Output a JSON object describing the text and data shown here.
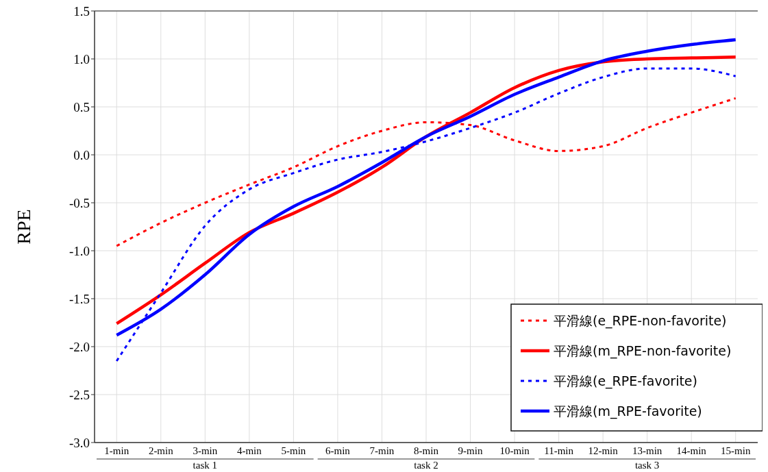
{
  "chart_data": {
    "type": "line",
    "ylabel": "RPE",
    "categories": [
      "1-min",
      "2-min",
      "3-min",
      "4-min",
      "5-min",
      "6-min",
      "7-min",
      "8-min",
      "9-min",
      "10-min",
      "11-min",
      "12-min",
      "13-min",
      "14-min",
      "15-min"
    ],
    "annotations": [
      "task 1",
      "task 2",
      "task 3"
    ],
    "ylim": [
      -3.0,
      1.5
    ],
    "yticks": [
      {
        "value": 1.5,
        "label": "1.5"
      },
      {
        "value": 1.0,
        "label": "1.0"
      },
      {
        "value": 0.5,
        "label": "0.5"
      },
      {
        "value": 0.0,
        "label": "0.0"
      },
      {
        "value": -0.5,
        "label": "-0.5"
      },
      {
        "value": -1.0,
        "label": "-1.0"
      },
      {
        "value": -1.5,
        "label": "-1.5"
      },
      {
        "value": -2.0,
        "label": "-2.0"
      },
      {
        "value": -2.5,
        "label": "-2.5"
      },
      {
        "value": -3.0,
        "label": "-3.0"
      }
    ],
    "grid": true,
    "legend": "bottom right",
    "series": [
      {
        "name": "平滑線(e_RPE-non-favorite)",
        "color": "#ff0000",
        "line_style": "dotted",
        "values": [
          -0.95,
          -0.71,
          -0.5,
          -0.31,
          -0.13,
          0.09,
          0.25,
          0.34,
          0.31,
          0.15,
          0.04,
          0.09,
          0.28,
          0.44,
          0.59
        ]
      },
      {
        "name": "平滑線(m_RPE-non-favorite)",
        "color": "#ff0000",
        "line_style": "solid",
        "values": [
          -1.76,
          -1.46,
          -1.13,
          -0.81,
          -0.61,
          -0.39,
          -0.13,
          0.19,
          0.44,
          0.7,
          0.88,
          0.97,
          1.0,
          1.01,
          1.02
        ]
      },
      {
        "name": "平滑線(e_RPE-favorite)",
        "color": "#0000ff",
        "line_style": "dotted",
        "values": [
          -2.15,
          -1.44,
          -0.74,
          -0.36,
          -0.19,
          -0.05,
          0.03,
          0.14,
          0.28,
          0.44,
          0.64,
          0.81,
          0.9,
          0.9,
          0.82
        ]
      },
      {
        "name": "平滑線(m_RPE-favorite)",
        "color": "#0000ff",
        "line_style": "solid",
        "values": [
          -1.88,
          -1.61,
          -1.25,
          -0.83,
          -0.54,
          -0.33,
          -0.08,
          0.19,
          0.4,
          0.63,
          0.81,
          0.98,
          1.08,
          1.15,
          1.2
        ]
      }
    ]
  }
}
